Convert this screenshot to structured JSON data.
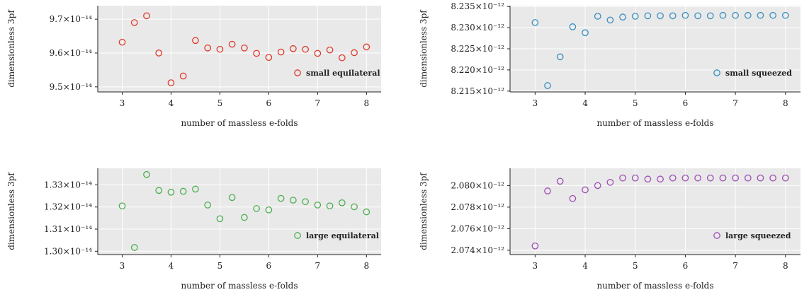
{
  "chart_data": [
    {
      "type": "scatter",
      "xlabel": "number of massless e-folds",
      "ylabel": "dimensionless 3pf",
      "xlim": [
        2.5,
        8.3
      ],
      "ylim": [
        9.485,
        9.74
      ],
      "xticks": [
        3,
        4,
        5,
        6,
        7,
        8
      ],
      "yticks": [
        9.5,
        9.6,
        9.7
      ],
      "ytick_labels": [
        "9.5×10⁻¹⁴",
        "9.6×10⁻¹⁴",
        "9.7×10⁻¹⁴"
      ],
      "grid": true,
      "legend_position": "lower-right",
      "series": [
        {
          "name": "small equilateral",
          "color": "#e03a2b",
          "x": [
            3,
            3.25,
            3.5,
            3.75,
            4,
            4.25,
            4.5,
            4.75,
            5,
            5.25,
            5.5,
            5.75,
            6,
            6.25,
            6.5,
            6.75,
            7,
            7.25,
            7.5,
            7.75,
            8
          ],
          "y": [
            9.632,
            9.69,
            9.71,
            9.6,
            9.512,
            9.532,
            9.637,
            9.615,
            9.611,
            9.626,
            9.615,
            9.599,
            9.587,
            9.603,
            9.613,
            9.611,
            9.599,
            9.609,
            9.586,
            9.601,
            9.618
          ]
        }
      ]
    },
    {
      "type": "scatter",
      "xlabel": "number of massless e-folds",
      "ylabel": "dimensionless 3pf",
      "xlim": [
        2.5,
        8.3
      ],
      "ylim": [
        8.2148,
        8.2352
      ],
      "xticks": [
        3,
        4,
        5,
        6,
        7,
        8
      ],
      "yticks": [
        8.215,
        8.22,
        8.225,
        8.23,
        8.235
      ],
      "ytick_labels": [
        "8.215×10⁻¹²",
        "8.220×10⁻¹²",
        "8.225×10⁻¹²",
        "8.230×10⁻¹²",
        "8.235×10⁻¹²"
      ],
      "grid": true,
      "legend_position": "lower-right",
      "series": [
        {
          "name": "small squeezed",
          "color": "#3a8fc0",
          "x": [
            3,
            3.25,
            3.5,
            3.75,
            4,
            4.25,
            4.5,
            4.75,
            5,
            5.25,
            5.5,
            5.75,
            6,
            6.25,
            6.5,
            6.75,
            7,
            7.25,
            7.5,
            7.75,
            8
          ],
          "y": [
            8.2312,
            8.2163,
            8.2231,
            8.2302,
            8.2288,
            8.2327,
            8.2318,
            8.2325,
            8.2327,
            8.2328,
            8.2328,
            8.2328,
            8.2329,
            8.2328,
            8.2328,
            8.2329,
            8.2329,
            8.2329,
            8.2329,
            8.2329,
            8.2329
          ]
        }
      ]
    },
    {
      "type": "scatter",
      "xlabel": "number of massless e-folds",
      "ylabel": "dimensionless 3pf",
      "xlim": [
        2.5,
        8.3
      ],
      "ylim": [
        1.2985,
        1.3375
      ],
      "xticks": [
        3,
        4,
        5,
        6,
        7,
        8
      ],
      "yticks": [
        1.3,
        1.31,
        1.32,
        1.33
      ],
      "ytick_labels": [
        "1.30×10⁻¹⁴",
        "1.31×10⁻¹⁴",
        "1.32×10⁻¹⁴",
        "1.33×10⁻¹⁴"
      ],
      "grid": true,
      "legend_position": "lower-right",
      "series": [
        {
          "name": "large equilateral",
          "color": "#4caf50",
          "x": [
            3,
            3.25,
            3.5,
            3.75,
            4,
            4.25,
            4.5,
            4.75,
            5,
            5.25,
            5.5,
            5.75,
            6,
            6.25,
            6.5,
            6.75,
            7,
            7.25,
            7.5,
            7.75,
            8
          ],
          "y": [
            1.3205,
            1.3017,
            1.3347,
            1.3275,
            1.3267,
            1.3271,
            1.3281,
            1.3209,
            1.3147,
            1.3243,
            1.3153,
            1.3193,
            1.3187,
            1.3239,
            1.3231,
            1.3224,
            1.3209,
            1.3205,
            1.3219,
            1.3201,
            1.3178
          ]
        }
      ]
    },
    {
      "type": "scatter",
      "xlabel": "number of massless e-folds",
      "ylabel": "dimensionless 3pf",
      "xlim": [
        2.5,
        8.3
      ],
      "ylim": [
        2.0736,
        2.0816
      ],
      "xticks": [
        3,
        4,
        5,
        6,
        7,
        8
      ],
      "yticks": [
        2.074,
        2.076,
        2.078,
        2.08
      ],
      "ytick_labels": [
        "2.074×10⁻¹²",
        "2.076×10⁻¹²",
        "2.078×10⁻¹²",
        "2.080×10⁻¹²"
      ],
      "grid": true,
      "legend_position": "lower-right",
      "series": [
        {
          "name": "large squeezed",
          "color": "#a04fb6",
          "x": [
            3,
            3.25,
            3.5,
            3.75,
            4,
            4.25,
            4.5,
            4.75,
            5,
            5.25,
            5.5,
            5.75,
            6,
            6.25,
            6.5,
            6.75,
            7,
            7.25,
            7.5,
            7.75,
            8
          ],
          "y": [
            2.0744,
            2.0795,
            2.0804,
            2.0788,
            2.0796,
            2.08,
            2.0803,
            2.0807,
            2.0807,
            2.0806,
            2.0806,
            2.0807,
            2.0807,
            2.0807,
            2.0807,
            2.0807,
            2.0807,
            2.0807,
            2.0807,
            2.0807,
            2.0807
          ]
        }
      ]
    }
  ]
}
